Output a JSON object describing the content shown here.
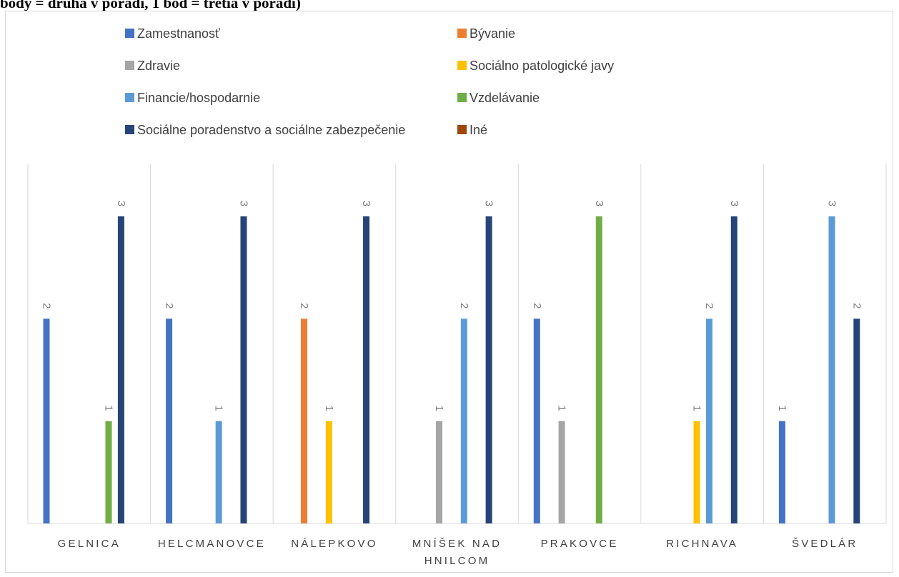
{
  "caption": "body = druhá v poradí, 1 bod = tretia v poradí)",
  "chart_data": {
    "type": "bar",
    "categories": [
      "GELNICA",
      "HELCMANOVCE",
      "NÁLEPKOVO",
      "MNÍŠEK NAD HNILCOM",
      "PRAKOVCE",
      "RICHNAVA",
      "ŠVEDLÁR"
    ],
    "category_lines": [
      [
        "GELNICA"
      ],
      [
        "HELCMANOVCE"
      ],
      [
        "NÁLEPKOVO"
      ],
      [
        "MNÍŠEK NAD",
        "HNILCOM"
      ],
      [
        "PRAKOVCE"
      ],
      [
        "RICHNAVA"
      ],
      [
        "ŠVEDLÁR"
      ]
    ],
    "series": [
      {
        "name": "Zamestnanosť",
        "color": "#4472c4",
        "values": [
          2,
          2,
          null,
          null,
          2,
          null,
          1
        ]
      },
      {
        "name": "Bývanie",
        "color": "#ed7d31",
        "values": [
          null,
          null,
          2,
          null,
          null,
          null,
          null
        ]
      },
      {
        "name": "Zdravie",
        "color": "#a5a5a5",
        "values": [
          null,
          null,
          null,
          1,
          1,
          null,
          null
        ]
      },
      {
        "name": "Sociálno patologické javy",
        "color": "#ffc000",
        "values": [
          null,
          null,
          1,
          null,
          null,
          1,
          null
        ]
      },
      {
        "name": "Financie/hospodarnie",
        "color": "#5b9bd5",
        "values": [
          null,
          1,
          null,
          2,
          null,
          2,
          3
        ]
      },
      {
        "name": "Vzdelávanie",
        "color": "#70ad47",
        "values": [
          1,
          null,
          null,
          null,
          3,
          null,
          null
        ]
      },
      {
        "name": "Sociálne poradenstvo a sociálne zabezpečenie",
        "color": "#264478",
        "values": [
          3,
          3,
          3,
          3,
          null,
          3,
          2
        ]
      },
      {
        "name": "Iné",
        "color": "#9e480e",
        "values": [
          null,
          null,
          null,
          null,
          null,
          null,
          null
        ]
      }
    ],
    "ylim": [
      0,
      3
    ],
    "legend_position": "top",
    "grid": "vertical category separators",
    "data_labels": "rotated, above bars"
  }
}
